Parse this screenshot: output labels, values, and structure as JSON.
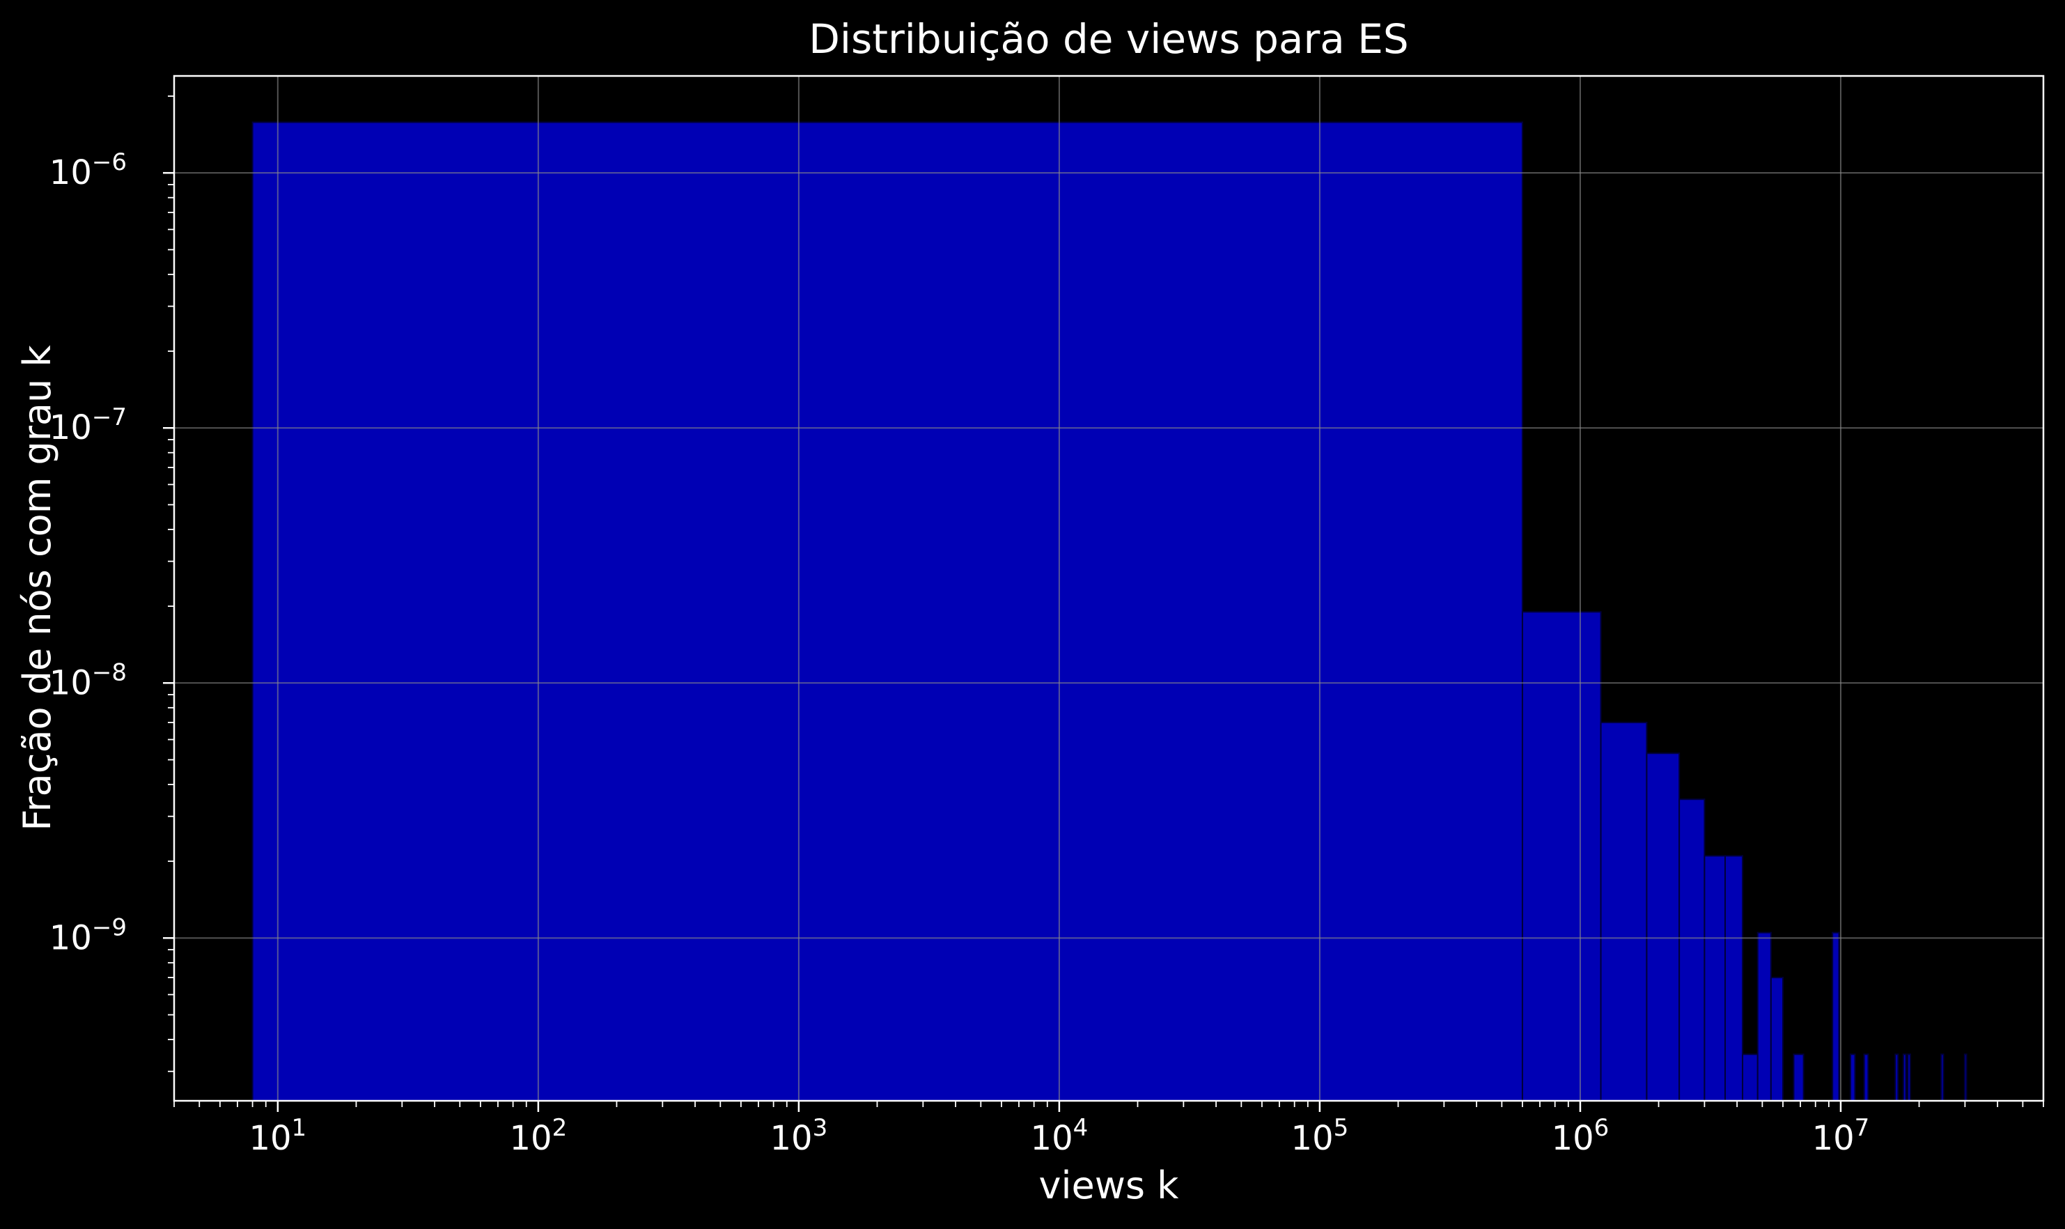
{
  "chart_data": {
    "type": "bar",
    "title": "Distribuição de views para ES",
    "xlabel": "views k",
    "ylabel": "Fração de nós com grau k",
    "xscale": "log",
    "yscale": "log",
    "xlim": [
      4,
      60000000
    ],
    "ylim": [
      2.3e-10,
      2.4e-06
    ],
    "grid": true,
    "colors": {
      "background": "#000000",
      "bar_fill": "#0000b4",
      "bar_edge": "#00003a",
      "axis": "#ffffff",
      "grid": "#8a8a8a"
    },
    "x_ticks": [
      {
        "base": "10",
        "exp": "1",
        "value": 10
      },
      {
        "base": "10",
        "exp": "2",
        "value": 100
      },
      {
        "base": "10",
        "exp": "3",
        "value": 1000
      },
      {
        "base": "10",
        "exp": "4",
        "value": 10000
      },
      {
        "base": "10",
        "exp": "5",
        "value": 100000
      },
      {
        "base": "10",
        "exp": "6",
        "value": 1000000
      },
      {
        "base": "10",
        "exp": "7",
        "value": 10000000
      }
    ],
    "y_ticks": [
      {
        "base": "10",
        "exp": "−9",
        "value": 1e-09
      },
      {
        "base": "10",
        "exp": "−8",
        "value": 1e-08
      },
      {
        "base": "10",
        "exp": "−7",
        "value": 1e-07
      },
      {
        "base": "10",
        "exp": "−6",
        "value": 1e-06
      }
    ],
    "bars": [
      {
        "x0": 8,
        "x1": 600000,
        "y": 1.58e-06
      },
      {
        "x0": 600000,
        "x1": 1200000,
        "y": 1.9e-08
      },
      {
        "x0": 1200000,
        "x1": 1800000,
        "y": 7e-09
      },
      {
        "x0": 1800000,
        "x1": 2400000,
        "y": 5.3e-09
      },
      {
        "x0": 2400000,
        "x1": 3000000,
        "y": 3.5e-09
      },
      {
        "x0": 3000000,
        "x1": 3600000,
        "y": 2.1e-09
      },
      {
        "x0": 3600000,
        "x1": 4200000,
        "y": 2.1e-09
      },
      {
        "x0": 4200000,
        "x1": 4800000,
        "y": 3.5e-10
      },
      {
        "x0": 4800000,
        "x1": 5400000,
        "y": 1.05e-09
      },
      {
        "x0": 5400000,
        "x1": 6000000,
        "y": 7e-10
      },
      {
        "x0": 6600000,
        "x1": 7200000,
        "y": 3.5e-10
      },
      {
        "x0": 9300000,
        "x1": 9850000,
        "y": 1.05e-09
      },
      {
        "x0": 10900000,
        "x1": 11350000,
        "y": 3.5e-10
      },
      {
        "x0": 12300000,
        "x1": 12750000,
        "y": 3.5e-10
      },
      {
        "x0": 16200000,
        "x1": 16600000,
        "y": 3.5e-10
      },
      {
        "x0": 17400000,
        "x1": 17800000,
        "y": 3.5e-10
      },
      {
        "x0": 18100000,
        "x1": 18500000,
        "y": 3.5e-10
      },
      {
        "x0": 24300000,
        "x1": 24800000,
        "y": 3.5e-10
      },
      {
        "x0": 29900000,
        "x1": 30400000,
        "y": 3.5e-10
      }
    ]
  }
}
